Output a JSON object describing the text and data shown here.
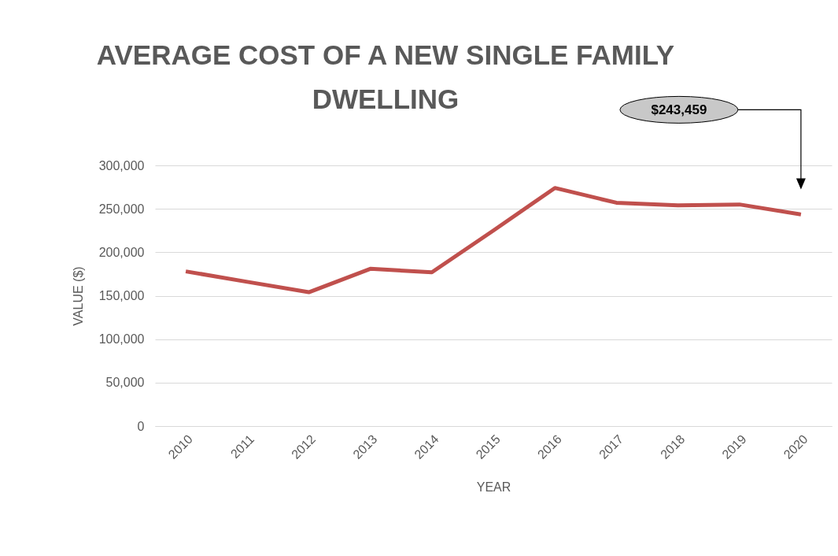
{
  "chart_data": {
    "type": "line",
    "title": "AVERAGE COST OF A NEW SINGLE FAMILY DWELLING",
    "xlabel": "YEAR",
    "ylabel": "VALUE ($)",
    "categories": [
      "2010",
      "2011",
      "2012",
      "2013",
      "2014",
      "2015",
      "2016",
      "2017",
      "2018",
      "2019",
      "2020"
    ],
    "series": [
      {
        "color": "#c0504d",
        "values": [
          178000,
          166000,
          154000,
          181000,
          177000,
          225000,
          274000,
          257000,
          254000,
          255000,
          243459
        ]
      }
    ],
    "ylim": [
      0,
      300000
    ],
    "yticks": [
      0,
      {
        "value": 50000,
        "label": "50,000"
      },
      {
        "value": 100000,
        "label": "100,000"
      },
      {
        "value": 150000,
        "label": "150,000"
      },
      {
        "value": 200000,
        "label": "200,000"
      },
      {
        "value": 250000,
        "label": "250,000"
      },
      {
        "value": 300000,
        "label": "300,000"
      }
    ],
    "grid": "y",
    "annotations": [
      "$243,459"
    ]
  }
}
